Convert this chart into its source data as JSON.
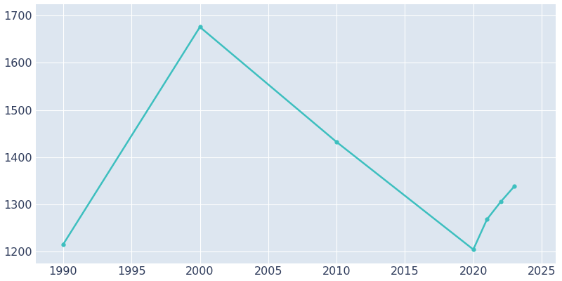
{
  "years": [
    1990,
    2000,
    2010,
    2020,
    2021,
    2022,
    2023
  ],
  "population": [
    1215,
    1676,
    1432,
    1204,
    1268,
    1305,
    1338
  ],
  "line_color": "#3DBFBF",
  "marker_color": "#3DBFBF",
  "plot_background_color": "#DDE6F0",
  "figure_background_color": "#FFFFFF",
  "grid_color": "#FFFFFF",
  "text_color": "#2D3A5A",
  "xlim": [
    1988,
    2026
  ],
  "ylim": [
    1175,
    1725
  ],
  "xticks": [
    1990,
    1995,
    2000,
    2005,
    2010,
    2015,
    2020,
    2025
  ],
  "yticks": [
    1200,
    1300,
    1400,
    1500,
    1600,
    1700
  ],
  "line_width": 1.8,
  "marker_size": 3.5,
  "tick_labelsize": 11.5
}
